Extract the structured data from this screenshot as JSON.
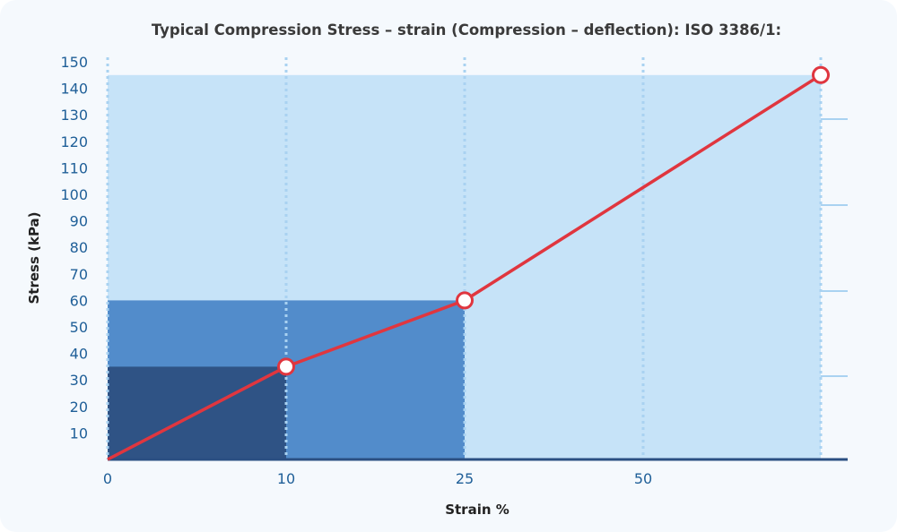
{
  "chart_data": {
    "type": "line",
    "title": "Typical Compression Stress – strain (Compression – deflection): ISO 3386/1:",
    "xlabel": "Strain %",
    "ylabel": "Stress (kPa)",
    "x_tick_labels": [
      "0",
      "10",
      "25",
      "50"
    ],
    "y_tick_labels": [
      "10",
      "20",
      "30",
      "40",
      "50",
      "60",
      "70",
      "80",
      "90",
      "100",
      "110",
      "120",
      "130",
      "140",
      "150"
    ],
    "ylim": [
      0,
      150
    ],
    "grid": "vertical dotted",
    "series": [
      {
        "points": [
          [
            "0",
            0
          ],
          [
            "10",
            35
          ],
          [
            "25",
            60
          ],
          [
            "75",
            145
          ]
        ]
      }
    ],
    "colors": {
      "line": "#e0363f",
      "band_light": "#c6e3f8",
      "band_mid": "#528ccb",
      "band_dark": "#2f5385",
      "axis": "#2b4f82",
      "tick": "#1f5f98"
    }
  }
}
